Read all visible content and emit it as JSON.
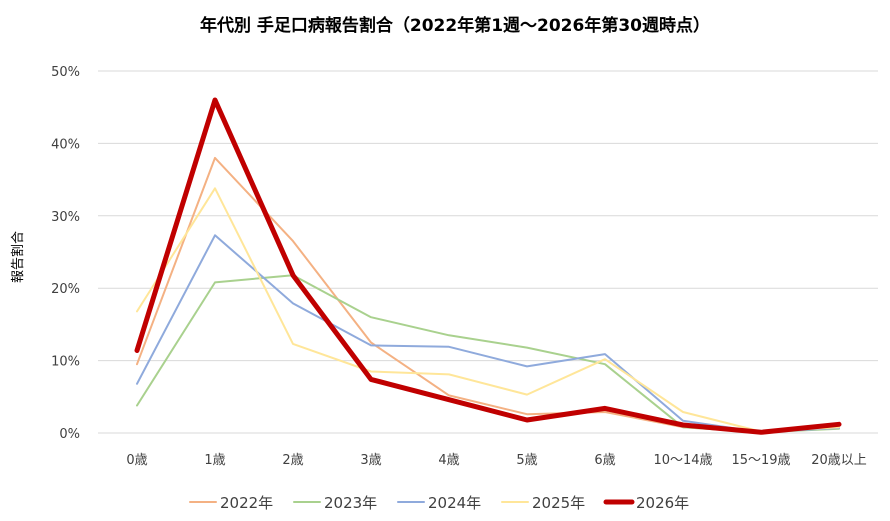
{
  "chart_data": {
    "type": "line",
    "title": "年代別 手足口病報告割合（2022年第1週～2026年第30週時点）",
    "xlabel": "",
    "ylabel": "報告割合",
    "categories": [
      "0歳",
      "1歳",
      "2歳",
      "3歳",
      "4歳",
      "5歳",
      "6歳",
      "10～14歳",
      "15～19歳",
      "20歳以上"
    ],
    "y_ticks": [
      "0%",
      "10%",
      "20%",
      "30%",
      "40%",
      "50%"
    ],
    "ylim": [
      0,
      50
    ],
    "grid": true,
    "legend_position": "bottom",
    "series": [
      {
        "name": "2022年",
        "color": "#f4b183",
        "emphasis": false,
        "values": [
          9.5,
          38.0,
          26.5,
          12.5,
          5.2,
          2.6,
          2.9,
          0.8,
          0.1,
          0.9
        ]
      },
      {
        "name": "2023年",
        "color": "#a9d18e",
        "emphasis": false,
        "values": [
          3.8,
          20.8,
          21.8,
          16.0,
          13.5,
          11.8,
          9.5,
          0.8,
          0.1,
          0.6
        ]
      },
      {
        "name": "2024年",
        "color": "#8faadc",
        "emphasis": false,
        "values": [
          6.8,
          27.3,
          17.9,
          12.1,
          11.9,
          9.2,
          10.9,
          1.7,
          0.1,
          0.7
        ]
      },
      {
        "name": "2025年",
        "color": "#ffe699",
        "emphasis": false,
        "values": [
          16.8,
          33.8,
          12.3,
          8.5,
          8.1,
          5.3,
          10.2,
          2.9,
          0.2,
          0.8
        ]
      },
      {
        "name": "2026年",
        "color": "#c00000",
        "emphasis": true,
        "values": [
          11.4,
          46.0,
          21.8,
          7.4,
          4.6,
          1.8,
          3.4,
          1.1,
          0.1,
          1.2
        ]
      }
    ]
  }
}
